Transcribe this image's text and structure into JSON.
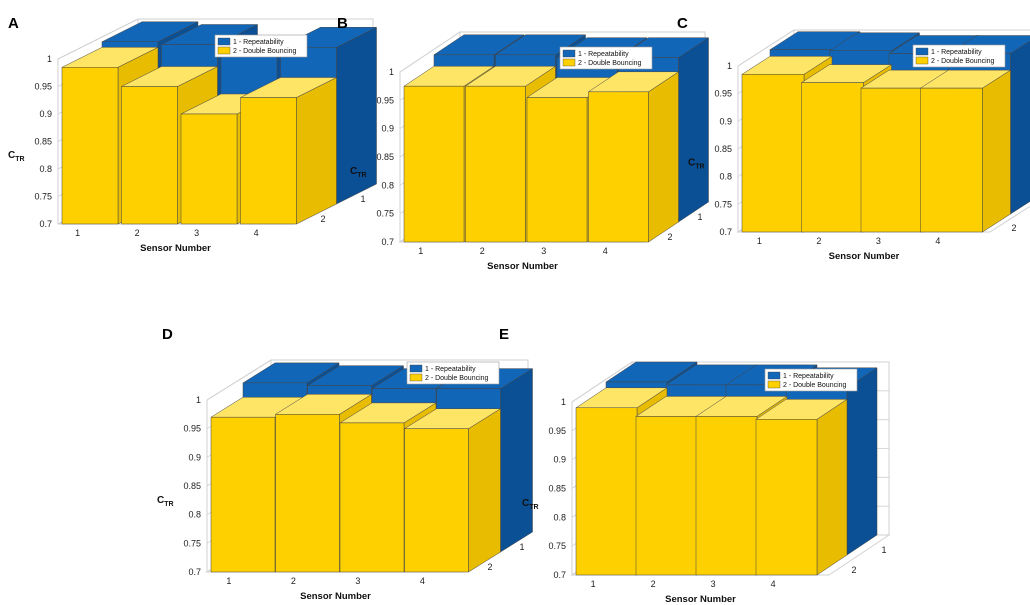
{
  "chart_data": [
    {
      "panel": "A",
      "type": "bar",
      "style": "3d-grouped",
      "xlabel": "Sensor Number",
      "ylabel_main": "C",
      "ylabel_sub": "TR",
      "ylim": [
        0.7,
        1.0
      ],
      "yticks": [
        "0.7",
        "0.75",
        "0.8",
        "0.85",
        "0.9",
        "0.95",
        "1"
      ],
      "categories": [
        "1",
        "2",
        "3",
        "4"
      ],
      "depth_labels": [
        "2",
        "1"
      ],
      "series": [
        {
          "name": "1 - Repeatability",
          "values": [
            0.995,
            0.99,
            0.97,
            0.985
          ]
        },
        {
          "name": "2 - Double Bouncing",
          "values": [
            0.985,
            0.95,
            0.9,
            0.93
          ]
        }
      ]
    },
    {
      "panel": "B",
      "type": "bar",
      "style": "3d-grouped",
      "xlabel": "Sensor Number",
      "ylabel_main": "C",
      "ylabel_sub": "TR",
      "ylim": [
        0.7,
        1.0
      ],
      "yticks": [
        "0.7",
        "0.75",
        "0.8",
        "0.85",
        "0.9",
        "0.95",
        "1"
      ],
      "categories": [
        "1",
        "2",
        "3",
        "4"
      ],
      "depth_labels": [
        "2",
        "1"
      ],
      "series": [
        {
          "name": "1 - Repeatability",
          "values": [
            0.995,
            0.995,
            0.99,
            0.99
          ]
        },
        {
          "name": "2 - Double Bouncing",
          "values": [
            0.975,
            0.975,
            0.955,
            0.965
          ]
        }
      ]
    },
    {
      "panel": "C",
      "type": "bar",
      "style": "3d-grouped",
      "xlabel": "Sensor Number",
      "ylabel_main": "C",
      "ylabel_sub": "TR",
      "ylim": [
        0.7,
        1.0
      ],
      "yticks": [
        "0.7",
        "0.75",
        "0.8",
        "0.85",
        "0.9",
        "0.95",
        "1"
      ],
      "categories": [
        "1",
        "2",
        "3",
        "4"
      ],
      "depth_labels": [
        "2",
        "1"
      ],
      "series": [
        {
          "name": "1 - Repeatability",
          "values": [
            0.997,
            0.995,
            0.99,
            0.99
          ]
        },
        {
          "name": "2 - Double Bouncing",
          "values": [
            0.985,
            0.97,
            0.96,
            0.96
          ]
        }
      ]
    },
    {
      "panel": "D",
      "type": "bar",
      "style": "3d-grouped",
      "xlabel": "Sensor Number",
      "ylabel_main": "C",
      "ylabel_sub": "TR",
      "ylim": [
        0.7,
        1.0
      ],
      "yticks": [
        "0.7",
        "0.75",
        "0.8",
        "0.85",
        "0.9",
        "0.95",
        "1"
      ],
      "categories": [
        "1",
        "2",
        "3",
        "4"
      ],
      "depth_labels": [
        "2",
        "1"
      ],
      "series": [
        {
          "name": "1 - Repeatability",
          "values": [
            0.995,
            0.99,
            0.985,
            0.985
          ]
        },
        {
          "name": "2 - Double Bouncing",
          "values": [
            0.97,
            0.975,
            0.96,
            0.95
          ]
        }
      ]
    },
    {
      "panel": "E",
      "type": "bar",
      "style": "3d-grouped",
      "xlabel": "Sensor Number",
      "ylabel_main": "C",
      "ylabel_sub": "TR",
      "ylim": [
        0.7,
        1.0
      ],
      "yticks": [
        "0.7",
        "0.75",
        "0.8",
        "0.85",
        "0.9",
        "0.95",
        "1"
      ],
      "categories": [
        "1",
        "2",
        "3",
        "4"
      ],
      "depth_labels": [
        "2",
        "1"
      ],
      "series": [
        {
          "name": "1 - Repeatability",
          "values": [
            1.0,
            0.995,
            0.995,
            0.99
          ]
        },
        {
          "name": "2 - Double Bouncing",
          "values": [
            0.99,
            0.975,
            0.975,
            0.97
          ]
        }
      ]
    }
  ],
  "colors": {
    "repeatability": "#1266b8",
    "repeatability_dark": "#0b4f94",
    "double_bouncing": "#ffd000",
    "double_bouncing_top": "#ffe566",
    "double_bouncing_side": "#e8bc00",
    "edge": "#444444",
    "grid": "#d0d0d0"
  }
}
